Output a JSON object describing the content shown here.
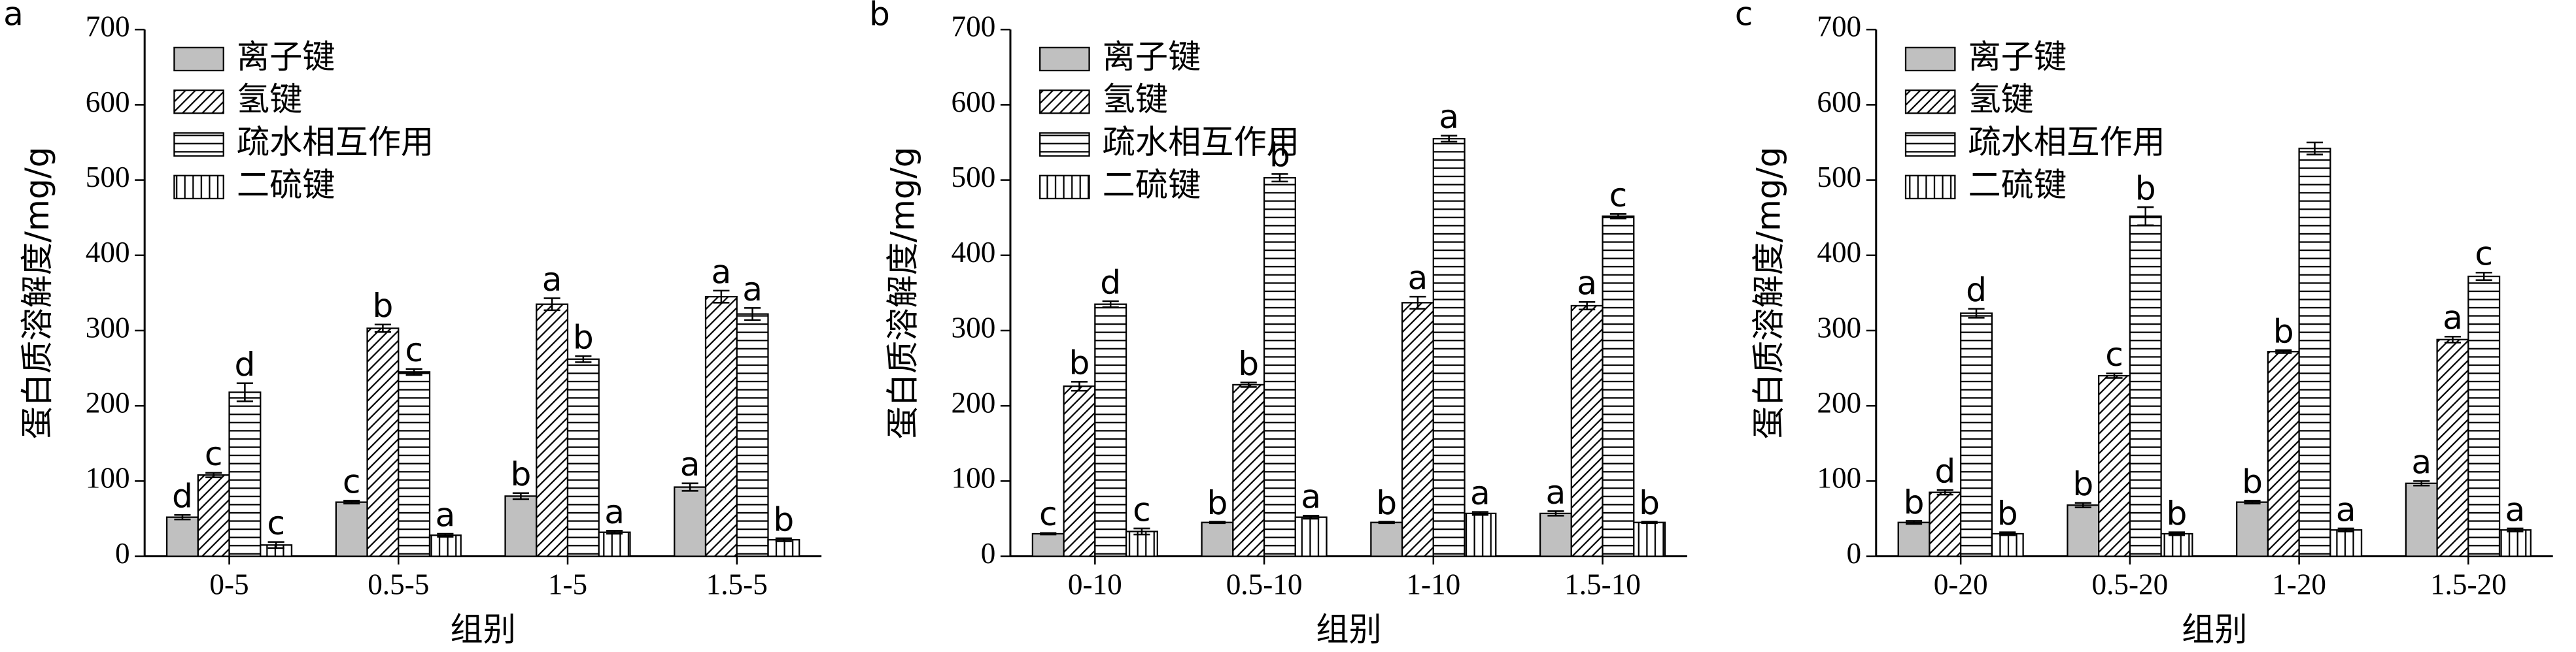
{
  "chart_data": [
    {
      "type": "bar",
      "panel_label": "a",
      "ylabel": "蛋白质溶解度/mg/g",
      "xlabel": "组别",
      "categories": [
        "0-5",
        "0.5-5",
        "1-5",
        "1.5-5"
      ],
      "ylim": [
        0,
        700
      ],
      "yticks": [
        0,
        100,
        200,
        300,
        400,
        500,
        600,
        700
      ],
      "series": [
        {
          "name": "离子键",
          "color": "#c0c0c0",
          "values": [
            52,
            72,
            80,
            92
          ],
          "errors": [
            3,
            2,
            4,
            5
          ],
          "letters": [
            "d",
            "c",
            "b",
            "a"
          ]
        },
        {
          "name": "氢键",
          "color": "#ffffff",
          "hatch": "/",
          "values": [
            108,
            303,
            335,
            345
          ],
          "errors": [
            3,
            5,
            8,
            8
          ],
          "letters": [
            "c",
            "b",
            "a",
            "a"
          ]
        },
        {
          "name": "疏水相互作用",
          "color": "#ffffff",
          "hatch": "-",
          "values": [
            218,
            245,
            262,
            322
          ],
          "errors": [
            12,
            4,
            4,
            8
          ],
          "letters": [
            "d",
            "c",
            "b",
            "a"
          ]
        },
        {
          "name": "二硫键",
          "color": "#ffffff",
          "hatch": "|",
          "values": [
            15,
            28,
            32,
            22
          ],
          "errors": [
            4,
            2,
            2,
            2
          ],
          "letters": [
            "c",
            "a",
            "a",
            "b"
          ]
        }
      ]
    },
    {
      "type": "bar",
      "panel_label": "b",
      "ylabel": "蛋白质溶解度/mg/g",
      "xlabel": "组别",
      "categories": [
        "0-10",
        "0.5-10",
        "1-10",
        "1.5-10"
      ],
      "ylim": [
        0,
        700
      ],
      "yticks": [
        0,
        100,
        200,
        300,
        400,
        500,
        600,
        700
      ],
      "series": [
        {
          "name": "离子键",
          "color": "#c0c0c0",
          "values": [
            30,
            45,
            45,
            57
          ],
          "errors": [
            1,
            1,
            1,
            3
          ],
          "letters": [
            "c",
            "b",
            "b",
            "a"
          ]
        },
        {
          "name": "氢键",
          "color": "#ffffff",
          "hatch": "/",
          "values": [
            226,
            228,
            337,
            333
          ],
          "errors": [
            6,
            3,
            8,
            5
          ],
          "letters": [
            "b",
            "b",
            "a",
            "a"
          ]
        },
        {
          "name": "疏水相互作用",
          "color": "#ffffff",
          "hatch": "-",
          "values": [
            335,
            503,
            555,
            452
          ],
          "errors": [
            4,
            5,
            4,
            3
          ],
          "letters": [
            "d",
            "b",
            "a",
            "c"
          ]
        },
        {
          "name": "二硫键",
          "color": "#ffffff",
          "hatch": "|",
          "values": [
            33,
            52,
            57,
            45
          ],
          "errors": [
            4,
            2,
            2,
            1
          ],
          "letters": [
            "c",
            "a",
            "a",
            "b"
          ]
        }
      ]
    },
    {
      "type": "bar",
      "panel_label": "c",
      "ylabel": "蛋白质溶解度/mg/g",
      "xlabel": "组别",
      "categories": [
        "0-20",
        "0.5-20",
        "1-20",
        "1.5-20"
      ],
      "ylim": [
        0,
        700
      ],
      "yticks": [
        0,
        100,
        200,
        300,
        400,
        500,
        600,
        700
      ],
      "series": [
        {
          "name": "离子键",
          "color": "#c0c0c0",
          "values": [
            45,
            68,
            72,
            97
          ],
          "errors": [
            2,
            3,
            2,
            3
          ],
          "letters": [
            "b",
            "b",
            "b",
            "a"
          ]
        },
        {
          "name": "氢键",
          "color": "#ffffff",
          "hatch": "/",
          "values": [
            85,
            240,
            272,
            288
          ],
          "errors": [
            3,
            3,
            2,
            4
          ],
          "letters": [
            "d",
            "c",
            "b",
            "a"
          ]
        },
        {
          "name": "疏水相互作用",
          "color": "#ffffff",
          "hatch": "-",
          "values": [
            323,
            452,
            542,
            372
          ],
          "errors": [
            6,
            12,
            8,
            5
          ],
          "letters": [
            "d",
            "b",
            null,
            "c"
          ]
        },
        {
          "name": "二硫键",
          "color": "#ffffff",
          "hatch": "|",
          "values": [
            30,
            30,
            35,
            35
          ],
          "errors": [
            2,
            2,
            2,
            2
          ],
          "letters": [
            "b",
            "b",
            "a",
            "a"
          ]
        }
      ]
    }
  ]
}
